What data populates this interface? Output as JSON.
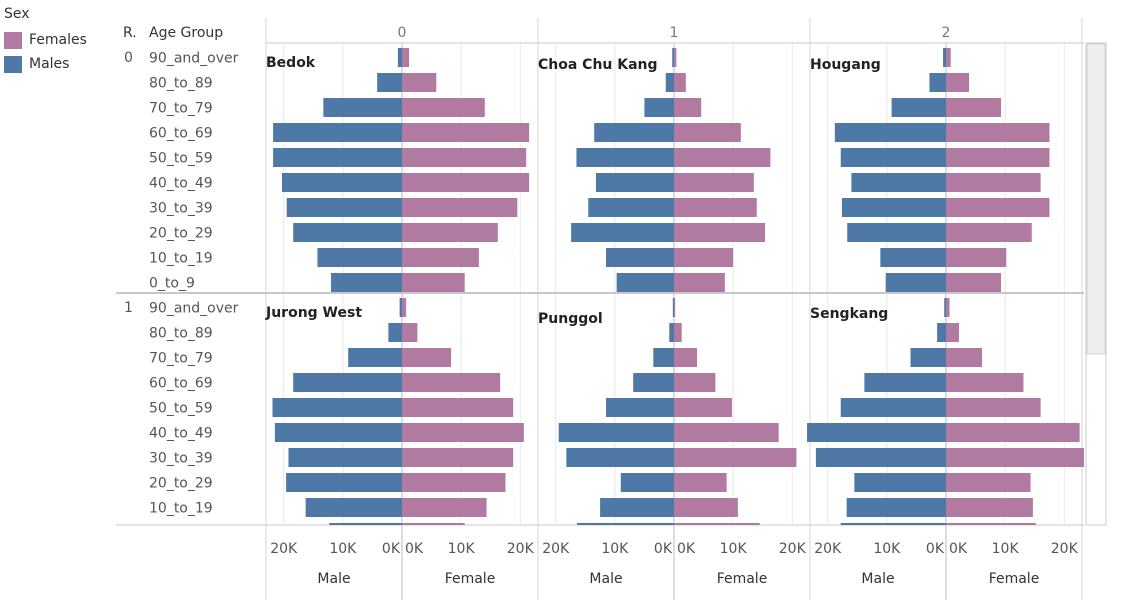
{
  "legend": {
    "title": "Sex",
    "items": [
      {
        "label": "Females",
        "color": "#b07aa1"
      },
      {
        "label": "Males",
        "color": "#4e79a7"
      }
    ]
  },
  "header": {
    "row_col_label": "R.",
    "age_group_label": "Age Group",
    "columns": [
      "0",
      "1",
      "2"
    ]
  },
  "chart_data": {
    "type": "bar",
    "categories": [
      "90_and_over",
      "80_to_89",
      "70_to_79",
      "60_to_69",
      "50_to_59",
      "40_to_49",
      "30_to_39",
      "20_to_29",
      "10_to_19",
      "0_to_9"
    ],
    "x_axis": {
      "male": {
        "label": "Male",
        "ticks": [
          "20K",
          "10K",
          "0K"
        ],
        "range": [
          0,
          23000
        ]
      },
      "female": {
        "label": "Female",
        "ticks": [
          "0K",
          "10K",
          "20K"
        ],
        "range": [
          0,
          23000
        ]
      }
    },
    "rows": [
      {
        "label": "0",
        "panels": [
          {
            "name": "Bedok",
            "male": [
              700,
              4200,
              13300,
              21800,
              21800,
              20300,
              19500,
              18400,
              14300,
              12000
            ],
            "female": [
              1200,
              5800,
              14000,
              21500,
              21000,
              21500,
              19500,
              16200,
              13000,
              10600
            ]
          },
          {
            "name": "Choa Chu Kang",
            "male": [
              300,
              1400,
              5000,
              13500,
              16500,
              13200,
              14500,
              17400,
              11500,
              9700
            ],
            "female": [
              400,
              2000,
              4600,
              11300,
              16300,
              13500,
              14000,
              15400,
              10000,
              8600
            ]
          },
          {
            "name": "Hougang",
            "male": [
              500,
              2800,
              9200,
              18800,
              17800,
              16000,
              17600,
              16700,
              11100,
              10200
            ],
            "female": [
              800,
              3900,
              9300,
              17500,
              17500,
              16000,
              17500,
              14500,
              10200,
              9300
            ]
          }
        ]
      },
      {
        "label": "1",
        "panels": [
          {
            "name": "Jurong West",
            "male": [
              400,
              2300,
              9100,
              18400,
              21900,
              21500,
              19200,
              19600,
              16300,
              12300
            ],
            "female": [
              700,
              2600,
              8300,
              16600,
              18800,
              20600,
              18800,
              17500,
              14300,
              10600
            ]
          },
          {
            "name": "Punggol",
            "male": [
              200,
              800,
              3500,
              6900,
              11500,
              19500,
              18200,
              9000,
              12500,
              16400
            ],
            "female": [
              200,
              1300,
              3900,
              7000,
              9800,
              17700,
              20700,
              8900,
              10800,
              14500
            ]
          },
          {
            "name": "Sengkang",
            "male": [
              300,
              1500,
              6000,
              13800,
              17800,
              23500,
              22000,
              15500,
              16800,
              17800
            ],
            "female": [
              600,
              2200,
              6100,
              13100,
              16000,
              22600,
              23500,
              14300,
              14700,
              15200
            ]
          }
        ]
      }
    ]
  }
}
